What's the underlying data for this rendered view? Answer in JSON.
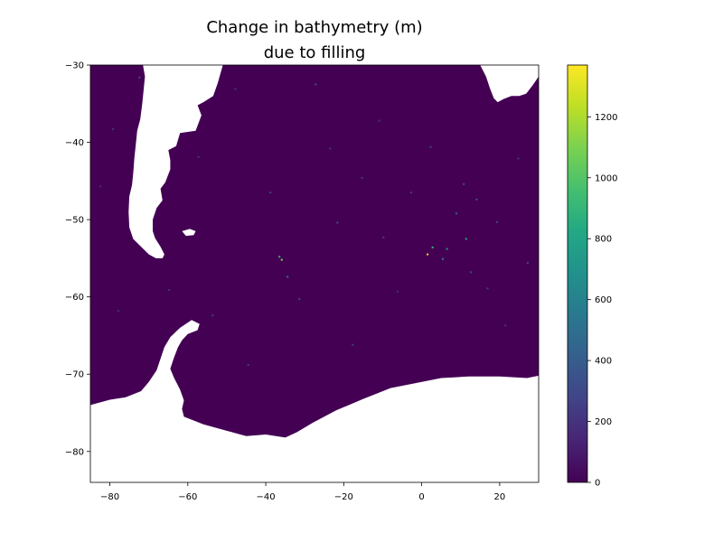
{
  "chart_data": {
    "type": "heatmap",
    "title_lines": [
      "Change in bathymetry (m)",
      "due to filling"
    ],
    "xlim": [
      -85,
      30
    ],
    "ylim": [
      -84,
      -30
    ],
    "x_ticks": [
      -80,
      -60,
      -40,
      -20,
      0,
      20
    ],
    "y_ticks": [
      -30,
      -40,
      -50,
      -60,
      -70,
      -80
    ],
    "colormap": "viridis",
    "colorbar": {
      "range": [
        0,
        1370
      ],
      "ticks": [
        0,
        200,
        400,
        600,
        800,
        1000,
        1200
      ]
    },
    "background_color": "#440154",
    "missing_color": "#ffffff",
    "land_masks": [
      {
        "name": "south-america",
        "outline": [
          [
            -73,
            -30
          ],
          [
            -71.5,
            -30
          ],
          [
            -71,
            -31.5
          ],
          [
            -71.3,
            -33
          ],
          [
            -71.7,
            -35
          ],
          [
            -72.2,
            -37
          ],
          [
            -73,
            -38.5
          ],
          [
            -73.3,
            -40
          ],
          [
            -73.7,
            -42
          ],
          [
            -74,
            -44
          ],
          [
            -74.3,
            -45.5
          ],
          [
            -75,
            -47
          ],
          [
            -75.2,
            -49
          ],
          [
            -75,
            -51
          ],
          [
            -74,
            -52.5
          ],
          [
            -72,
            -53.5
          ],
          [
            -70,
            -54.5
          ],
          [
            -68.2,
            -55
          ],
          [
            -66.5,
            -55
          ],
          [
            -66,
            -54.5
          ],
          [
            -67,
            -53.5
          ],
          [
            -68.4,
            -52.4
          ],
          [
            -69,
            -51.5
          ],
          [
            -69,
            -50
          ],
          [
            -68,
            -48.5
          ],
          [
            -66.5,
            -47.5
          ],
          [
            -67,
            -46
          ],
          [
            -65.8,
            -45.2
          ],
          [
            -64.5,
            -43.5
          ],
          [
            -64.5,
            -42.3
          ],
          [
            -65,
            -41
          ],
          [
            -63,
            -40.5
          ],
          [
            -62,
            -38.8
          ],
          [
            -58,
            -38.5
          ],
          [
            -56.5,
            -36.5
          ],
          [
            -57.5,
            -35.2
          ],
          [
            -56,
            -34.8
          ],
          [
            -53.5,
            -34
          ],
          [
            -52.3,
            -32.3
          ],
          [
            -51,
            -30
          ],
          [
            -73,
            -30
          ]
        ]
      },
      {
        "name": "falkland-islands",
        "outline": [
          [
            -61.5,
            -51.5
          ],
          [
            -59.5,
            -51.2
          ],
          [
            -58,
            -51.5
          ],
          [
            -58.5,
            -52
          ],
          [
            -60.5,
            -52.1
          ],
          [
            -61.5,
            -51.5
          ]
        ]
      },
      {
        "name": "africa",
        "outline": [
          [
            15,
            -30
          ],
          [
            16.5,
            -31.5
          ],
          [
            17.5,
            -33
          ],
          [
            18.5,
            -34.3
          ],
          [
            19.5,
            -34.8
          ],
          [
            21,
            -34.4
          ],
          [
            23,
            -34
          ],
          [
            25,
            -34
          ],
          [
            26.8,
            -33.7
          ],
          [
            28.5,
            -32.6
          ],
          [
            30,
            -31.5
          ],
          [
            30,
            -30
          ],
          [
            15,
            -30
          ]
        ]
      },
      {
        "name": "antarctic-peninsula",
        "outline": [
          [
            -85,
            -74
          ],
          [
            -80,
            -73.3
          ],
          [
            -76,
            -73
          ],
          [
            -72,
            -72.2
          ],
          [
            -70,
            -71
          ],
          [
            -68,
            -69.5
          ],
          [
            -67,
            -68
          ],
          [
            -66,
            -66.5
          ],
          [
            -64.5,
            -65.2
          ],
          [
            -62,
            -64
          ],
          [
            -59,
            -63
          ],
          [
            -57,
            -63.5
          ],
          [
            -57.5,
            -64.3
          ],
          [
            -60,
            -64.8
          ],
          [
            -61.5,
            -65.6
          ],
          [
            -62.5,
            -66.5
          ],
          [
            -63.5,
            -67.8
          ],
          [
            -64.5,
            -69.3
          ],
          [
            -63.5,
            -70.5
          ],
          [
            -62,
            -72
          ],
          [
            -61,
            -73.4
          ],
          [
            -61.5,
            -74.5
          ],
          [
            -61,
            -75.5
          ],
          [
            -56,
            -76.5
          ],
          [
            -48,
            -77.6
          ],
          [
            -45,
            -78
          ],
          [
            -40,
            -77.8
          ],
          [
            -35,
            -78.2
          ],
          [
            -32,
            -77.5
          ],
          [
            -28,
            -76.3
          ],
          [
            -22,
            -74.7
          ],
          [
            -15,
            -73.2
          ],
          [
            -8,
            -71.8
          ],
          [
            -2,
            -71.2
          ],
          [
            5,
            -70.5
          ],
          [
            12,
            -70.3
          ],
          [
            20,
            -70.3
          ],
          [
            27,
            -70.5
          ],
          [
            30,
            -70.2
          ],
          [
            30,
            -84
          ],
          [
            -85,
            -84
          ],
          [
            -85,
            -74
          ]
        ]
      }
    ],
    "fill_changes": [
      [
        -72.4,
        -31.6,
        300
      ],
      [
        -68.6,
        -35.3,
        150
      ],
      [
        -60.2,
        -36.9,
        200
      ],
      [
        -47.8,
        -33.1,
        180
      ],
      [
        -36.5,
        -54.8,
        900
      ],
      [
        -35.9,
        -55.2,
        1100
      ],
      [
        -34.4,
        -57.4,
        500
      ],
      [
        -27.2,
        -32.5,
        350
      ],
      [
        -23.5,
        -40.8,
        200
      ],
      [
        -21.6,
        -50.4,
        300
      ],
      [
        -15.3,
        -44.6,
        220
      ],
      [
        -9.8,
        -52.3,
        260
      ],
      [
        -6.2,
        -59.3,
        180
      ],
      [
        -2.7,
        -46.5,
        240
      ],
      [
        1.5,
        -54.5,
        1300
      ],
      [
        2.8,
        -53.6,
        900
      ],
      [
        5.4,
        -55.1,
        600
      ],
      [
        6.5,
        -53.8,
        700
      ],
      [
        8.9,
        -49.2,
        400
      ],
      [
        11.4,
        -52.5,
        800
      ],
      [
        12.6,
        -56.8,
        300
      ],
      [
        14.1,
        -47.4,
        350
      ],
      [
        16.9,
        -58.9,
        250
      ],
      [
        19.3,
        -50.3,
        280
      ],
      [
        21.5,
        -63.7,
        200
      ],
      [
        24.8,
        -42.1,
        220
      ],
      [
        27.2,
        -55.6,
        260
      ],
      [
        -79.2,
        -38.3,
        180
      ],
      [
        -82.4,
        -45.7,
        150
      ],
      [
        -77.8,
        -61.8,
        200
      ],
      [
        -53.6,
        -62.4,
        260
      ],
      [
        -44.5,
        -68.8,
        220
      ],
      [
        -31.4,
        -60.3,
        300
      ],
      [
        -17.7,
        -66.2,
        240
      ],
      [
        2.3,
        -40.6,
        260
      ],
      [
        10.8,
        -45.4,
        320
      ],
      [
        -10.9,
        -37.2,
        200
      ],
      [
        -38.8,
        -46.5,
        260
      ],
      [
        -57.3,
        -41.9,
        220
      ],
      [
        -64.8,
        -59.1,
        190
      ]
    ]
  }
}
